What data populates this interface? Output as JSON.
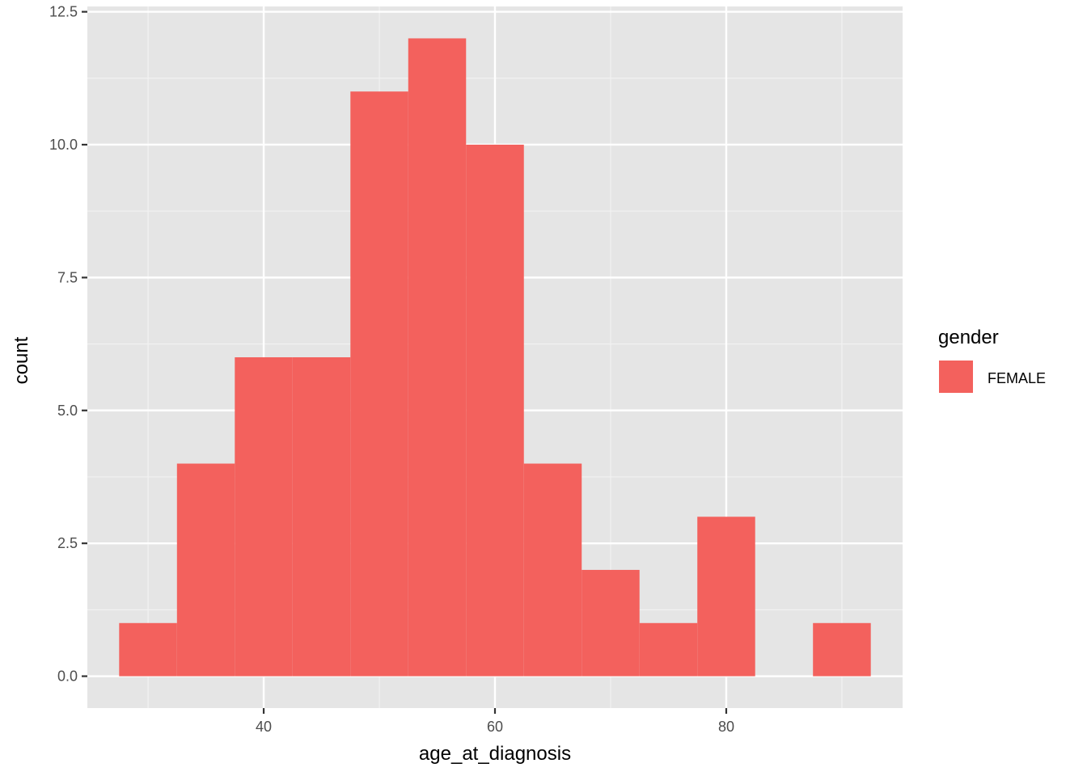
{
  "chart_data": {
    "type": "bar",
    "subtype": "histogram",
    "xlabel": "age_at_diagnosis",
    "ylabel": "count",
    "xlim": [
      24.75,
      95.25
    ],
    "ylim": [
      -0.6,
      12.6
    ],
    "x_ticks": [
      40,
      60,
      80
    ],
    "x_tick_labels": [
      "40",
      "60",
      "80"
    ],
    "x_minor_ticks": [
      30,
      50,
      70,
      90
    ],
    "y_ticks": [
      0,
      2.5,
      5,
      7.5,
      10,
      12.5
    ],
    "y_tick_labels": [
      "0.0",
      "2.5",
      "5.0",
      "7.5",
      "10.0",
      "12.5"
    ],
    "y_minor_ticks": [
      1.25,
      3.75,
      6.25,
      8.75,
      11.25
    ],
    "bin_width": 5,
    "bins": [
      {
        "start": 27.5,
        "end": 32.5,
        "count": 1
      },
      {
        "start": 32.5,
        "end": 37.5,
        "count": 4
      },
      {
        "start": 37.5,
        "end": 42.5,
        "count": 6
      },
      {
        "start": 42.5,
        "end": 47.5,
        "count": 6
      },
      {
        "start": 47.5,
        "end": 52.5,
        "count": 11
      },
      {
        "start": 52.5,
        "end": 57.5,
        "count": 12
      },
      {
        "start": 57.5,
        "end": 62.5,
        "count": 10
      },
      {
        "start": 62.5,
        "end": 67.5,
        "count": 4
      },
      {
        "start": 67.5,
        "end": 72.5,
        "count": 2
      },
      {
        "start": 72.5,
        "end": 77.5,
        "count": 1
      },
      {
        "start": 77.5,
        "end": 82.5,
        "count": 3
      },
      {
        "start": 82.5,
        "end": 87.5,
        "count": 0
      },
      {
        "start": 87.5,
        "end": 92.5,
        "count": 1
      }
    ],
    "grid": true,
    "legend": {
      "title": "gender",
      "position": "right",
      "entries": [
        {
          "name": "FEMALE",
          "color": "#F3615D"
        }
      ]
    },
    "colors": {
      "bar": "#F3615D",
      "panel_background": "#E5E5E5",
      "grid_major": "#FFFFFF",
      "grid_minor": "#F2F2F2"
    }
  }
}
